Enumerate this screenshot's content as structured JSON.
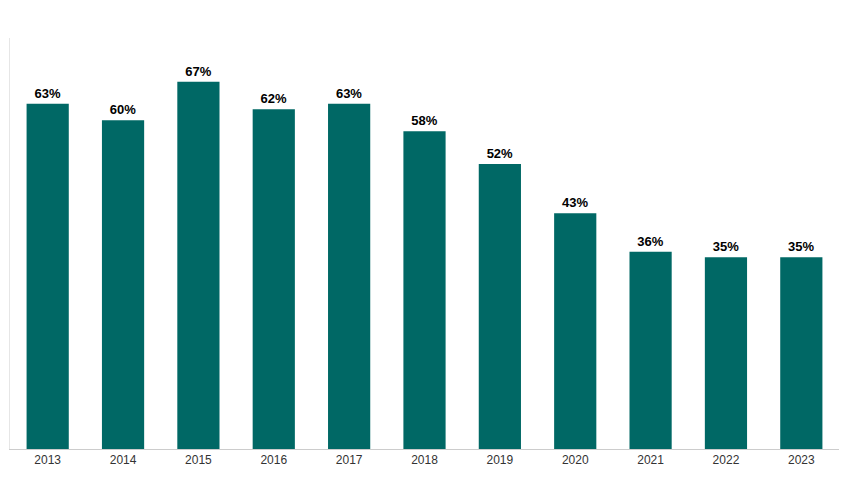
{
  "chart_data": {
    "type": "bar",
    "categories": [
      "2013",
      "2014",
      "2015",
      "2016",
      "2017",
      "2018",
      "2019",
      "2020",
      "2021",
      "2022",
      "2023"
    ],
    "values": [
      63,
      60,
      67,
      62,
      63,
      58,
      52,
      43,
      36,
      35,
      35
    ],
    "value_labels": [
      "63%",
      "60%",
      "67%",
      "62%",
      "63%",
      "58%",
      "52%",
      "43%",
      "36%",
      "35%",
      "35%"
    ],
    "color": "#006865",
    "ylim": [
      0,
      75
    ],
    "yticks": [],
    "grid": false,
    "data_labels": true,
    "tick_labels": "x"
  }
}
